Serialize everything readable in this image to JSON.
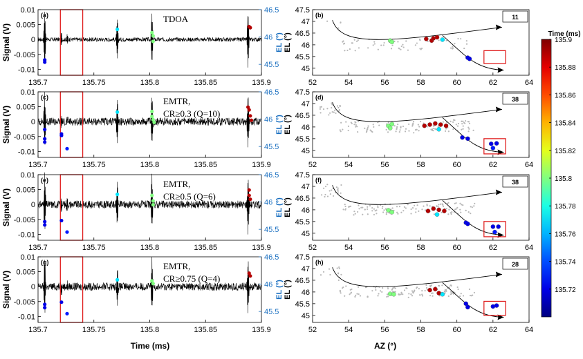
{
  "figure": {
    "left_xlabel": "Time (ms)",
    "left_ylabel": "Signal (V)",
    "right_xlabel": "AZ (°)",
    "right_ylabel": "EL (°)",
    "colorbar_label": "Time (ms)",
    "colorbar_ticks": [
      "135.9",
      "135.88",
      "135.86",
      "135.84",
      "135.82",
      "135.8",
      "135.78",
      "135.76",
      "135.74",
      "135.72"
    ]
  },
  "chart_data": [
    {
      "type": "line",
      "panel": "(a)",
      "title": "TDOA",
      "xlim": [
        135.7,
        135.9
      ],
      "xticks": [
        "135.7",
        "135.75",
        "135.8",
        "135.85",
        "135.9"
      ],
      "ylim_left": [
        -0.012,
        0.01
      ],
      "yticks_left": [
        "0.01",
        "0.005",
        "0",
        "-0.005",
        "-0.01"
      ],
      "ylim_right": [
        45.3,
        46.5
      ],
      "yticks_right": [
        "46.5",
        "46",
        "45.5"
      ],
      "highlight_window_ms": [
        135.72,
        135.74
      ],
      "sources": [
        {
          "t": 135.706,
          "el": 45.58,
          "time": 135.72
        },
        {
          "t": 135.706,
          "el": 45.54,
          "time": 135.72
        },
        {
          "t": 135.771,
          "el": 46.14,
          "time": 135.77
        },
        {
          "t": 135.802,
          "el": 46.08,
          "time": 135.8
        },
        {
          "t": 135.803,
          "el": 46.02,
          "time": 135.8
        },
        {
          "t": 135.803,
          "el": 45.92,
          "time": 135.8
        },
        {
          "t": 135.889,
          "el": 46.19,
          "time": 135.89
        },
        {
          "t": 135.89,
          "el": 46.17,
          "time": 135.89
        }
      ]
    },
    {
      "type": "scatter",
      "panel": "(b)",
      "count": "11",
      "xlim": [
        52,
        64
      ],
      "xticks": [
        "52",
        "54",
        "56",
        "58",
        "60",
        "62",
        "64"
      ],
      "ylim": [
        44.7,
        47.5
      ],
      "yticks": [
        "47.5",
        "47",
        "46.5",
        "46",
        "45.5",
        "45"
      ],
      "box_az": [
        61.5,
        62.7
      ],
      "box_el": [
        45.2,
        45.75
      ],
      "sources": [
        {
          "az": 56.3,
          "el": 46.18,
          "time": 135.8
        },
        {
          "az": 56.4,
          "el": 46.12,
          "time": 135.8
        },
        {
          "az": 58.3,
          "el": 46.25,
          "time": 135.89
        },
        {
          "az": 58.6,
          "el": 46.18,
          "time": 135.89
        },
        {
          "az": 58.7,
          "el": 46.28,
          "time": 135.89
        },
        {
          "az": 58.9,
          "el": 46.32,
          "time": 135.89
        },
        {
          "az": 59.2,
          "el": 46.22,
          "time": 135.77
        },
        {
          "az": 60.6,
          "el": 45.45,
          "time": 135.72
        },
        {
          "az": 60.7,
          "el": 45.4,
          "time": 135.72
        }
      ]
    },
    {
      "type": "line",
      "panel": "(c)",
      "title": "EMTR,",
      "title2": "CR≥0.3 (Q=10)",
      "xlim": [
        135.7,
        135.9
      ],
      "xticks": [
        "135.7",
        "135.75",
        "135.8",
        "135.85",
        "135.9"
      ],
      "ylim_left": [
        -0.012,
        0.01
      ],
      "yticks_left": [
        "0.01",
        "0.005",
        "0",
        "-0.005",
        "-0.01"
      ],
      "ylim_right": [
        45.3,
        46.5
      ],
      "yticks_right": [
        "46.5",
        "46",
        "45.5"
      ],
      "highlight_window_ms": [
        135.72,
        135.74
      ],
      "sources": [
        {
          "t": 135.706,
          "el": 45.81,
          "time": 135.72
        },
        {
          "t": 135.706,
          "el": 45.64,
          "time": 135.72
        },
        {
          "t": 135.706,
          "el": 45.58,
          "time": 135.72
        },
        {
          "t": 135.721,
          "el": 45.73,
          "time": 135.72
        },
        {
          "t": 135.721,
          "el": 45.7,
          "time": 135.72
        },
        {
          "t": 135.726,
          "el": 45.46,
          "time": 135.73
        },
        {
          "t": 135.771,
          "el": 46.13,
          "time": 135.77
        },
        {
          "t": 135.802,
          "el": 46.14,
          "time": 135.8
        },
        {
          "t": 135.802,
          "el": 46.05,
          "time": 135.8
        },
        {
          "t": 135.803,
          "el": 45.99,
          "time": 135.8
        },
        {
          "t": 135.804,
          "el": 45.94,
          "time": 135.8
        },
        {
          "t": 135.888,
          "el": 46.22,
          "time": 135.89
        },
        {
          "t": 135.889,
          "el": 46.17,
          "time": 135.89
        },
        {
          "t": 135.89,
          "el": 46.06,
          "time": 135.89
        },
        {
          "t": 135.891,
          "el": 45.98,
          "time": 135.89
        }
      ]
    },
    {
      "type": "scatter",
      "panel": "(d)",
      "count": "38",
      "xlim": [
        52,
        64
      ],
      "xticks": [
        "52",
        "54",
        "56",
        "58",
        "60",
        "62",
        "64"
      ],
      "ylim": [
        44.7,
        47.5
      ],
      "yticks": [
        "47.5",
        "47",
        "46.5",
        "46",
        "45.5",
        "45"
      ],
      "box_az": [
        61.5,
        62.7
      ],
      "box_el": [
        44.85,
        45.5
      ],
      "sources": [
        {
          "az": 56.2,
          "el": 46.05,
          "time": 135.8
        },
        {
          "az": 56.3,
          "el": 45.95,
          "time": 135.8
        },
        {
          "az": 56.4,
          "el": 46.12,
          "time": 135.8
        },
        {
          "az": 58.2,
          "el": 46.05,
          "time": 135.89
        },
        {
          "az": 58.5,
          "el": 46.1,
          "time": 135.89
        },
        {
          "az": 58.8,
          "el": 46.15,
          "time": 135.89
        },
        {
          "az": 59.1,
          "el": 46.1,
          "time": 135.89
        },
        {
          "az": 59.4,
          "el": 46.05,
          "time": 135.89
        },
        {
          "az": 59.0,
          "el": 45.9,
          "time": 135.77
        },
        {
          "az": 60.3,
          "el": 45.55,
          "time": 135.72
        },
        {
          "az": 60.6,
          "el": 45.5,
          "time": 135.72
        },
        {
          "az": 61.9,
          "el": 45.28,
          "time": 135.72
        },
        {
          "az": 62.2,
          "el": 45.3,
          "time": 135.72
        },
        {
          "az": 62.0,
          "el": 45.1,
          "time": 135.73
        }
      ]
    },
    {
      "type": "line",
      "panel": "(e)",
      "title": "EMTR,",
      "title2": "CR≥0.5 (Q=6)",
      "xlim": [
        135.7,
        135.9
      ],
      "xticks": [
        "135.7",
        "135.75",
        "135.8",
        "135.85",
        "135.9"
      ],
      "ylim_left": [
        -0.012,
        0.01
      ],
      "yticks_left": [
        "0.01",
        "0.005",
        "0",
        "-0.005",
        "-0.01"
      ],
      "ylim_right": [
        45.3,
        46.5
      ],
      "yticks_right": [
        "46.5",
        "46",
        "45.5"
      ],
      "highlight_window_ms": [
        135.72,
        135.74
      ],
      "sources": [
        {
          "t": 135.706,
          "el": 45.64,
          "time": 135.72
        },
        {
          "t": 135.706,
          "el": 45.58,
          "time": 135.72
        },
        {
          "t": 135.721,
          "el": 45.66,
          "time": 135.72
        },
        {
          "t": 135.726,
          "el": 45.45,
          "time": 135.73
        },
        {
          "t": 135.771,
          "el": 46.14,
          "time": 135.77
        },
        {
          "t": 135.802,
          "el": 46.12,
          "time": 135.8
        },
        {
          "t": 135.803,
          "el": 46.02,
          "time": 135.8
        },
        {
          "t": 135.803,
          "el": 45.95,
          "time": 135.8
        },
        {
          "t": 135.889,
          "el": 46.22,
          "time": 135.89
        },
        {
          "t": 135.889,
          "el": 46.12,
          "time": 135.89
        },
        {
          "t": 135.89,
          "el": 46.05,
          "time": 135.89
        }
      ]
    },
    {
      "type": "scatter",
      "panel": "(f)",
      "count": "38",
      "xlim": [
        52,
        64
      ],
      "xticks": [
        "52",
        "54",
        "56",
        "58",
        "60",
        "62",
        "64"
      ],
      "ylim": [
        44.7,
        47.5
      ],
      "yticks": [
        "47.5",
        "47",
        "46.5",
        "46",
        "45.5",
        "45"
      ],
      "box_az": [
        61.5,
        62.7
      ],
      "box_el": [
        44.85,
        45.5
      ],
      "sources": [
        {
          "az": 56.2,
          "el": 45.98,
          "time": 135.8
        },
        {
          "az": 56.4,
          "el": 45.9,
          "time": 135.8
        },
        {
          "az": 58.4,
          "el": 45.95,
          "time": 135.89
        },
        {
          "az": 58.7,
          "el": 46.05,
          "time": 135.89
        },
        {
          "az": 59.0,
          "el": 46.0,
          "time": 135.89
        },
        {
          "az": 59.3,
          "el": 45.95,
          "time": 135.89
        },
        {
          "az": 58.9,
          "el": 45.8,
          "time": 135.77
        },
        {
          "az": 60.5,
          "el": 45.45,
          "time": 135.72
        },
        {
          "az": 60.6,
          "el": 45.4,
          "time": 135.72
        },
        {
          "az": 62.0,
          "el": 45.28,
          "time": 135.72
        },
        {
          "az": 62.3,
          "el": 45.28,
          "time": 135.72
        },
        {
          "az": 62.1,
          "el": 45.05,
          "time": 135.73
        }
      ]
    },
    {
      "type": "line",
      "panel": "(g)",
      "title": "EMTR,",
      "title2": "CR≥0.75 (Q=4)",
      "xlim": [
        135.7,
        135.9
      ],
      "xticks": [
        "135.7",
        "135.75",
        "135.8",
        "135.85",
        "135.9"
      ],
      "ylim_left": [
        -0.012,
        0.01
      ],
      "yticks_left": [
        "0.01",
        "0.005",
        "0",
        "-0.005",
        "-0.01"
      ],
      "ylim_right": [
        45.3,
        46.5
      ],
      "yticks_right": [
        "46.5",
        "46",
        "45.5"
      ],
      "highlight_window_ms": [
        135.72,
        135.74
      ],
      "sources": [
        {
          "t": 135.706,
          "el": 45.63,
          "time": 135.72
        },
        {
          "t": 135.706,
          "el": 45.57,
          "time": 135.72
        },
        {
          "t": 135.721,
          "el": 45.67,
          "time": 135.72
        },
        {
          "t": 135.726,
          "el": 45.46,
          "time": 135.73
        },
        {
          "t": 135.771,
          "el": 46.08,
          "time": 135.77
        },
        {
          "t": 135.802,
          "el": 46.06,
          "time": 135.8
        },
        {
          "t": 135.803,
          "el": 46.01,
          "time": 135.8
        },
        {
          "t": 135.889,
          "el": 46.2,
          "time": 135.89
        },
        {
          "t": 135.89,
          "el": 46.15,
          "time": 135.89
        }
      ]
    },
    {
      "type": "scatter",
      "panel": "(h)",
      "count": "28",
      "xlim": [
        52,
        64
      ],
      "xticks": [
        "52",
        "54",
        "56",
        "58",
        "60",
        "62",
        "64"
      ],
      "ylim": [
        44.7,
        47.5
      ],
      "yticks": [
        "47.5",
        "47",
        "46.5",
        "46",
        "45.5",
        "45"
      ],
      "box_az": [
        61.5,
        62.7
      ],
      "box_el": [
        45.0,
        45.6
      ],
      "sources": [
        {
          "az": 56.3,
          "el": 45.92,
          "time": 135.8
        },
        {
          "az": 56.5,
          "el": 45.9,
          "time": 135.8
        },
        {
          "az": 58.5,
          "el": 46.08,
          "time": 135.89
        },
        {
          "az": 58.8,
          "el": 46.12,
          "time": 135.89
        },
        {
          "az": 59.0,
          "el": 45.95,
          "time": 135.89
        },
        {
          "az": 59.2,
          "el": 45.9,
          "time": 135.77
        },
        {
          "az": 60.5,
          "el": 45.5,
          "time": 135.72
        },
        {
          "az": 60.6,
          "el": 45.35,
          "time": 135.72
        },
        {
          "az": 62.0,
          "el": 45.38,
          "time": 135.72
        },
        {
          "az": 62.2,
          "el": 45.42,
          "time": 135.72
        }
      ]
    }
  ]
}
